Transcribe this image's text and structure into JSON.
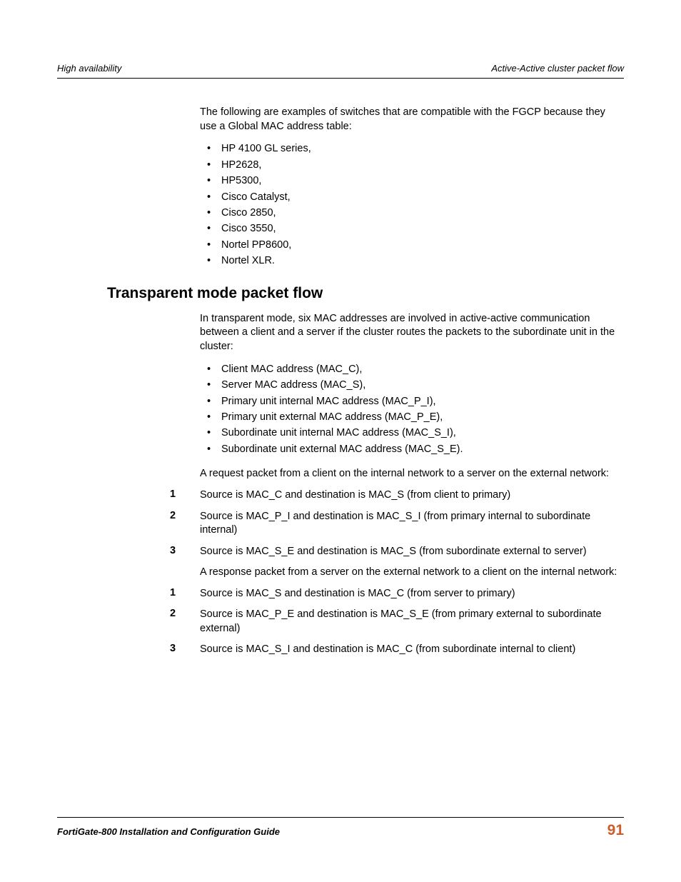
{
  "header": {
    "left": "High availability",
    "right": "Active-Active cluster packet flow"
  },
  "intro": "The following are examples of switches that are compatible with the FGCP because they use a Global MAC address table:",
  "switches": [
    "HP 4100 GL series,",
    "HP2628,",
    "HP5300,",
    "Cisco Catalyst,",
    "Cisco 2850,",
    "Cisco 3550,",
    "Nortel PP8600,",
    "Nortel XLR."
  ],
  "section": {
    "heading": "Transparent mode packet flow",
    "heading_color": "#000000",
    "heading_fontsize": 21,
    "intro": "In transparent mode, six MAC addresses are involved in active-active communication between a client and a server if the cluster routes the packets to the subordinate unit in the cluster:",
    "mac_items": [
      "Client MAC address (MAC_C),",
      "Server MAC address (MAC_S),",
      "Primary unit internal MAC address (MAC_P_I),",
      "Primary unit external MAC address (MAC_P_E),",
      "Subordinate unit internal MAC address (MAC_S_I),",
      "Subordinate unit external MAC address (MAC_S_E)."
    ],
    "request_intro": "A request packet from a client on the internal network to a server on the external network:",
    "request_steps": [
      {
        "n": "1",
        "t": "Source is MAC_C and destination is MAC_S (from client to primary)"
      },
      {
        "n": "2",
        "t": "Source is MAC_P_I and destination is MAC_S_I (from primary internal to subordinate internal)"
      },
      {
        "n": "3",
        "t": "Source is MAC_S_E and destination is MAC_S (from subordinate external to server)"
      }
    ],
    "response_intro": "A response packet from a server on the external network to a client on the internal network:",
    "response_steps": [
      {
        "n": "1",
        "t": "Source is MAC_S and destination is MAC_C (from server to primary)"
      },
      {
        "n": "2",
        "t": "Source is MAC_P_E and destination is MAC_S_E (from primary external to subordinate external)"
      },
      {
        "n": "3",
        "t": "Source is MAC_S_I and destination is MAC_C (from subordinate internal to client)"
      }
    ]
  },
  "footer": {
    "left": "FortiGate-800 Installation and Configuration Guide",
    "page_number": "91",
    "page_number_color": "#ce5c29"
  },
  "styling": {
    "body_font": "Arial",
    "body_fontsize": 14.5,
    "header_fontsize": 13,
    "background": "#ffffff",
    "text_color": "#000000",
    "rule_color": "#000000"
  }
}
